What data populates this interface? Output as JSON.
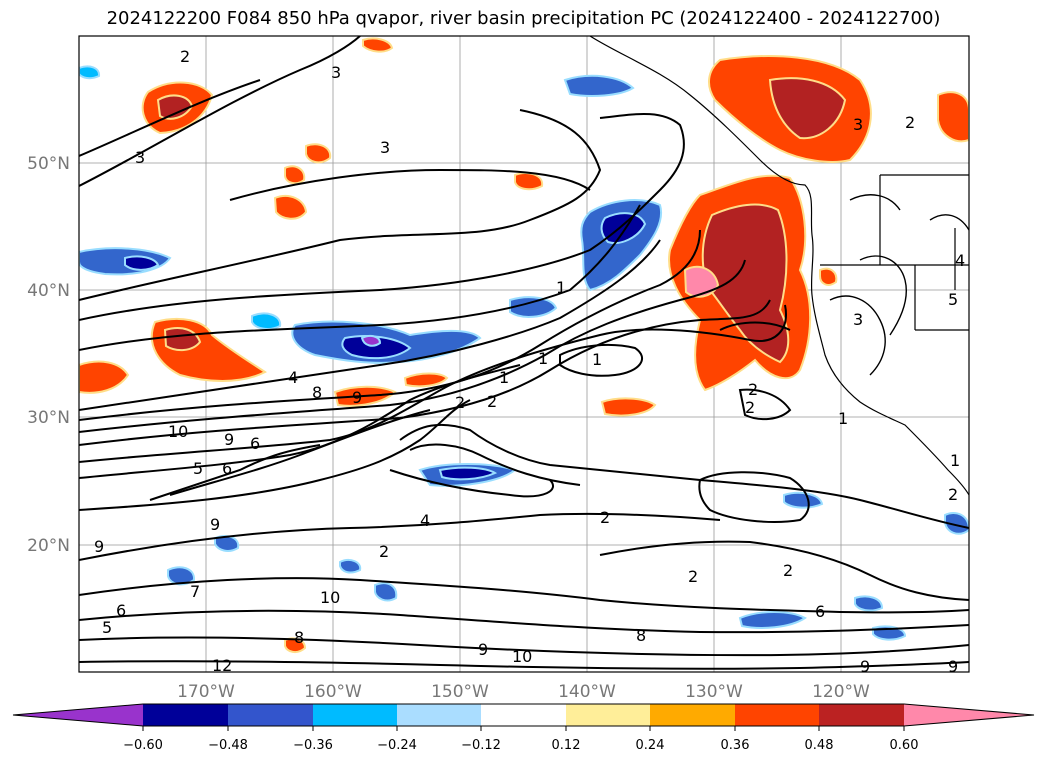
{
  "title": "2024122200 F084 850 hPa qvapor, river basin precipitation PC (2024122400 - 2024122700)",
  "map": {
    "lat_labels": [
      "50°N",
      "40°N",
      "30°N",
      "20°N"
    ],
    "lon_labels": [
      "170°W",
      "160°W",
      "150°W",
      "140°W",
      "130°W",
      "120°W"
    ],
    "contour_labels": [
      "2",
      "3",
      "3",
      "3",
      "2",
      "3",
      "2",
      "2",
      "4",
      "8",
      "9",
      "10",
      "9",
      "6",
      "5",
      "6",
      "2",
      "1",
      "1",
      "1",
      "2",
      "2",
      "1",
      "1",
      "9",
      "9",
      "4",
      "2",
      "2",
      "2",
      "6",
      "8",
      "10",
      "9",
      "10",
      "12",
      "5",
      "6",
      "8",
      "7",
      "9",
      "2",
      "3",
      "1",
      "5",
      "4",
      "9"
    ]
  },
  "colorbar": {
    "ticks": [
      "−0.60",
      "−0.48",
      "−0.36",
      "−0.24",
      "−0.12",
      "0.12",
      "0.24",
      "0.36",
      "0.48",
      "0.60"
    ],
    "colors": [
      "#9933cc",
      "#000099",
      "#3355cc",
      "#00bbff",
      "#aaddff",
      "#ffffff",
      "#ffee99",
      "#ffaa00",
      "#ff4400",
      "#bb2222",
      "#ff88aa"
    ]
  },
  "colors": {
    "pos_low": "#ffdd88",
    "pos_orange": "#ff9900",
    "pos_red": "#ff4400",
    "pos_dark": "#b22222",
    "pos_pink": "#ff88aa",
    "neg_light": "#99ddff",
    "neg_cyan": "#00bbff",
    "neg_blue": "#3366cc",
    "neg_navy": "#000099",
    "neg_purple": "#9933cc"
  }
}
